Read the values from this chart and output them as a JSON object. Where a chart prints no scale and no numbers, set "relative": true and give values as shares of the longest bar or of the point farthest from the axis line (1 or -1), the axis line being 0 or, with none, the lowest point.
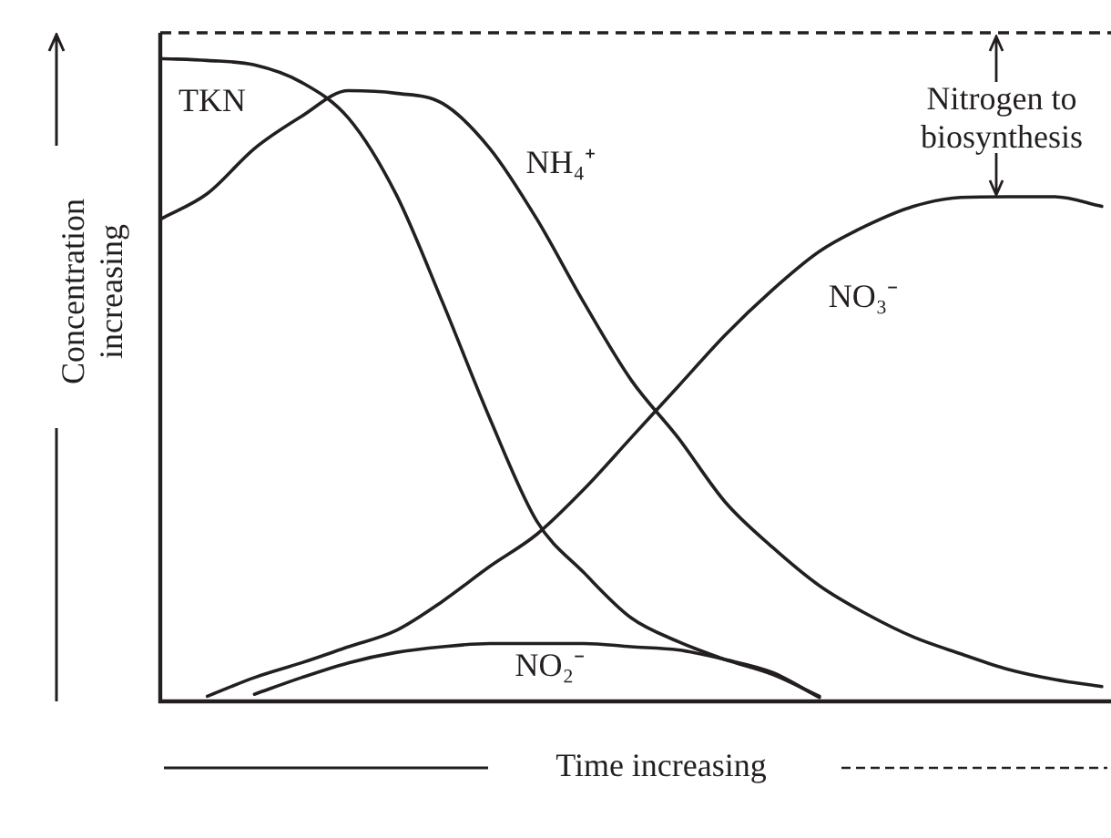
{
  "chart_data": {
    "type": "line",
    "relative": true,
    "xlabel": "Time increasing",
    "ylabel": "Concentration increasing",
    "categories": [
      null,
      null,
      null,
      null,
      null,
      null,
      null,
      null,
      null,
      null,
      null,
      null,
      null,
      null,
      null,
      null,
      null,
      null,
      null,
      null,
      null
    ],
    "series": [
      {
        "name": "TKN",
        "color": "#231f20",
        "values": [
          1.0,
          0.997,
          0.99,
          0.963,
          0.907,
          0.79,
          0.62,
          0.44,
          0.28,
          0.2,
          0.13,
          0.093,
          0.065,
          0.042,
          0.008,
          null,
          null,
          null,
          null,
          null,
          null
        ]
      },
      {
        "name": "NH₄⁺",
        "color": "#231f20",
        "values": [
          0.75,
          0.79,
          0.86,
          0.91,
          0.95,
          0.946,
          0.93,
          0.86,
          0.75,
          0.62,
          0.5,
          0.41,
          0.31,
          0.24,
          0.18,
          0.136,
          0.1,
          0.074,
          0.05,
          0.034,
          0.023
        ]
      },
      {
        "name": "NO₃⁻",
        "color": "#231f20",
        "values": [
          null,
          0.008,
          0.037,
          0.06,
          0.085,
          0.11,
          0.156,
          0.21,
          0.26,
          0.33,
          0.41,
          0.49,
          0.57,
          0.64,
          0.7,
          0.74,
          0.77,
          0.784,
          0.785,
          0.785,
          0.77
        ]
      },
      {
        "name": "NO₂⁻",
        "color": "#231f20",
        "values": [
          null,
          null,
          0.011,
          0.037,
          0.06,
          0.076,
          0.085,
          0.09,
          0.09,
          0.09,
          0.085,
          0.08,
          0.065,
          0.045,
          0.006,
          null,
          null,
          null,
          null,
          null,
          null
        ]
      }
    ],
    "ref_lines": [
      {
        "axis": "y",
        "value": 1.04,
        "color": "#231f20",
        "line_style": "dashed"
      }
    ],
    "annotations": [
      "Nitrogen to biosynthesis"
    ],
    "legend": false,
    "marker": "none",
    "line_style": "solid"
  }
}
